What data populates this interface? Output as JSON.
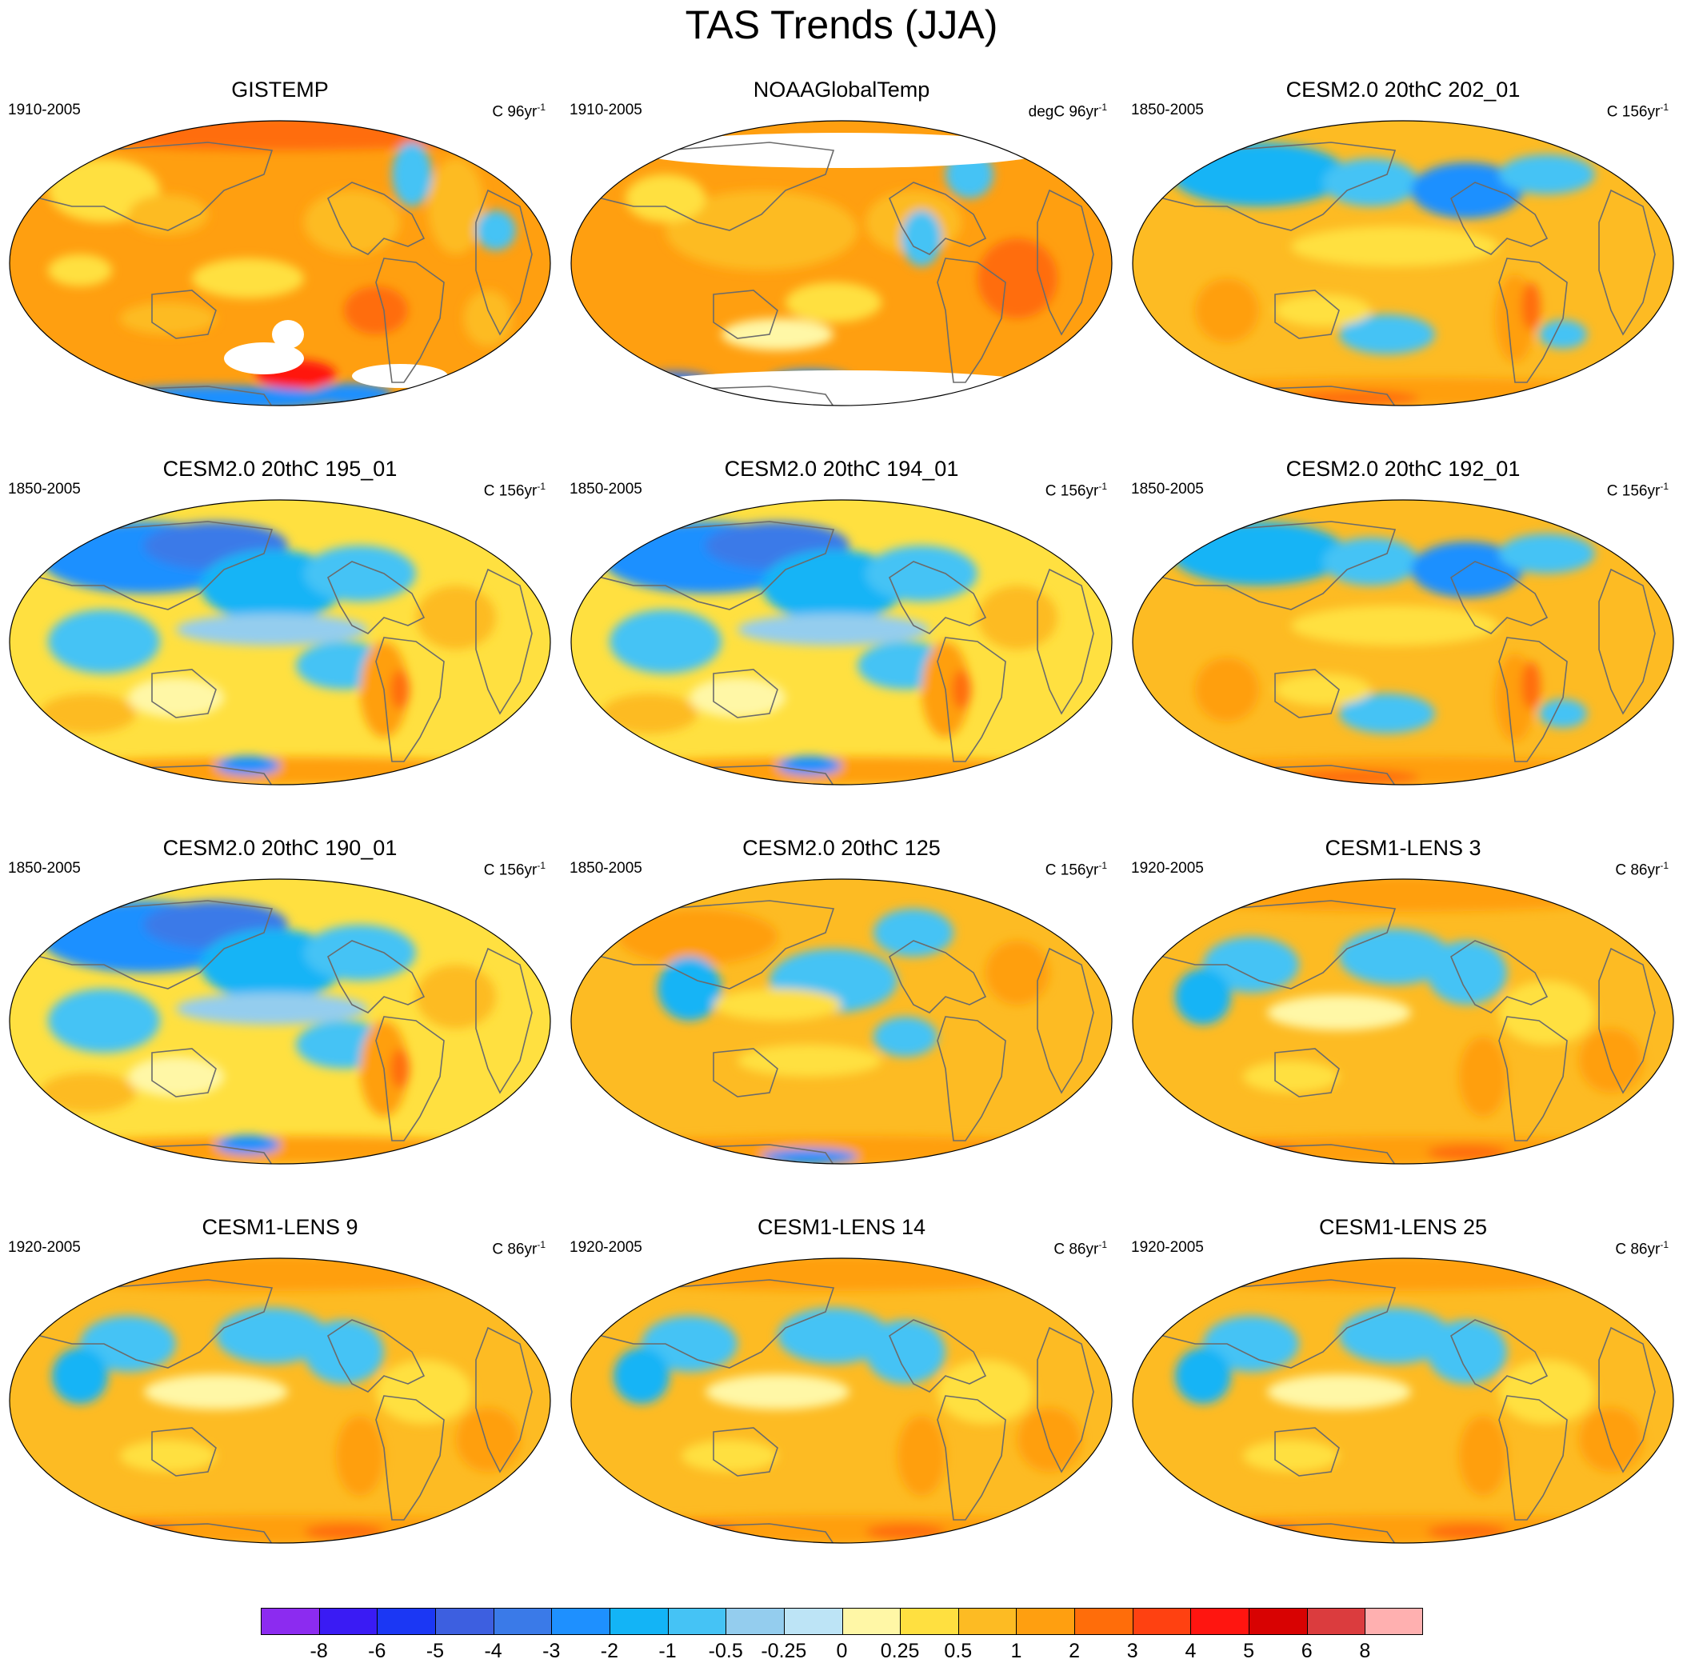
{
  "title": "TAS Trends (JJA)",
  "palette": {
    "colors": [
      "#8c2bf0",
      "#3a1bf4",
      "#1b37f4",
      "#3d5fe0",
      "#3a7ae8",
      "#1e90ff",
      "#13b4f6",
      "#45c3f5",
      "#94cdee",
      "#bde4f6",
      "#fff7a6",
      "#ffe040",
      "#fdbb23",
      "#ff9f10",
      "#ff6d0a",
      "#ff4111",
      "#ff1510",
      "#d80202",
      "#db3c3e",
      "#ffb0b0"
    ],
    "labels": [
      "-8",
      "-6",
      "-5",
      "-4",
      "-3",
      "-2",
      "-1",
      "-0.5",
      "-0.25",
      "0",
      "0.25",
      "0.5",
      "1",
      "2",
      "3",
      "4",
      "5",
      "6",
      "8"
    ]
  },
  "panels": [
    {
      "title": "GISTEMP",
      "years": "1910-2005",
      "units": "C 96yr",
      "units_exp": "-1",
      "style": "obs"
    },
    {
      "title": "NOAAGlobalTemp",
      "years": "1910-2005",
      "units": "degC 96yr",
      "units_exp": "-1",
      "style": "obs2"
    },
    {
      "title": "CESM2.0 20thC 202_01",
      "years": "1850-2005",
      "units": "C 156yr",
      "units_exp": "-1",
      "style": "cesm2"
    },
    {
      "title": "CESM2.0 20thC 195_01",
      "years": "1850-2005",
      "units": "C 156yr",
      "units_exp": "-1",
      "style": "cold"
    },
    {
      "title": "CESM2.0 20thC 194_01",
      "years": "1850-2005",
      "units": "C 156yr",
      "units_exp": "-1",
      "style": "cold"
    },
    {
      "title": "CESM2.0 20thC 192_01",
      "years": "1850-2005",
      "units": "C 156yr",
      "units_exp": "-1",
      "style": "cesm2"
    },
    {
      "title": "CESM2.0 20thC 190_01",
      "years": "1850-2005",
      "units": "C 156yr",
      "units_exp": "-1",
      "style": "cold"
    },
    {
      "title": "CESM2.0 20thC 125",
      "years": "1850-2005",
      "units": "C 156yr",
      "units_exp": "-1",
      "style": "mixed"
    },
    {
      "title": "CESM1-LENS 3",
      "years": "1920-2005",
      "units": "C 86yr",
      "units_exp": "-1",
      "style": "lens"
    },
    {
      "title": "CESM1-LENS 9",
      "years": "1920-2005",
      "units": "C 86yr",
      "units_exp": "-1",
      "style": "lens"
    },
    {
      "title": "CESM1-LENS 14",
      "years": "1920-2005",
      "units": "C 86yr",
      "units_exp": "-1",
      "style": "lens"
    },
    {
      "title": "CESM1-LENS 25",
      "years": "1920-2005",
      "units": "C 86yr",
      "units_exp": "-1",
      "style": "lens"
    }
  ]
}
